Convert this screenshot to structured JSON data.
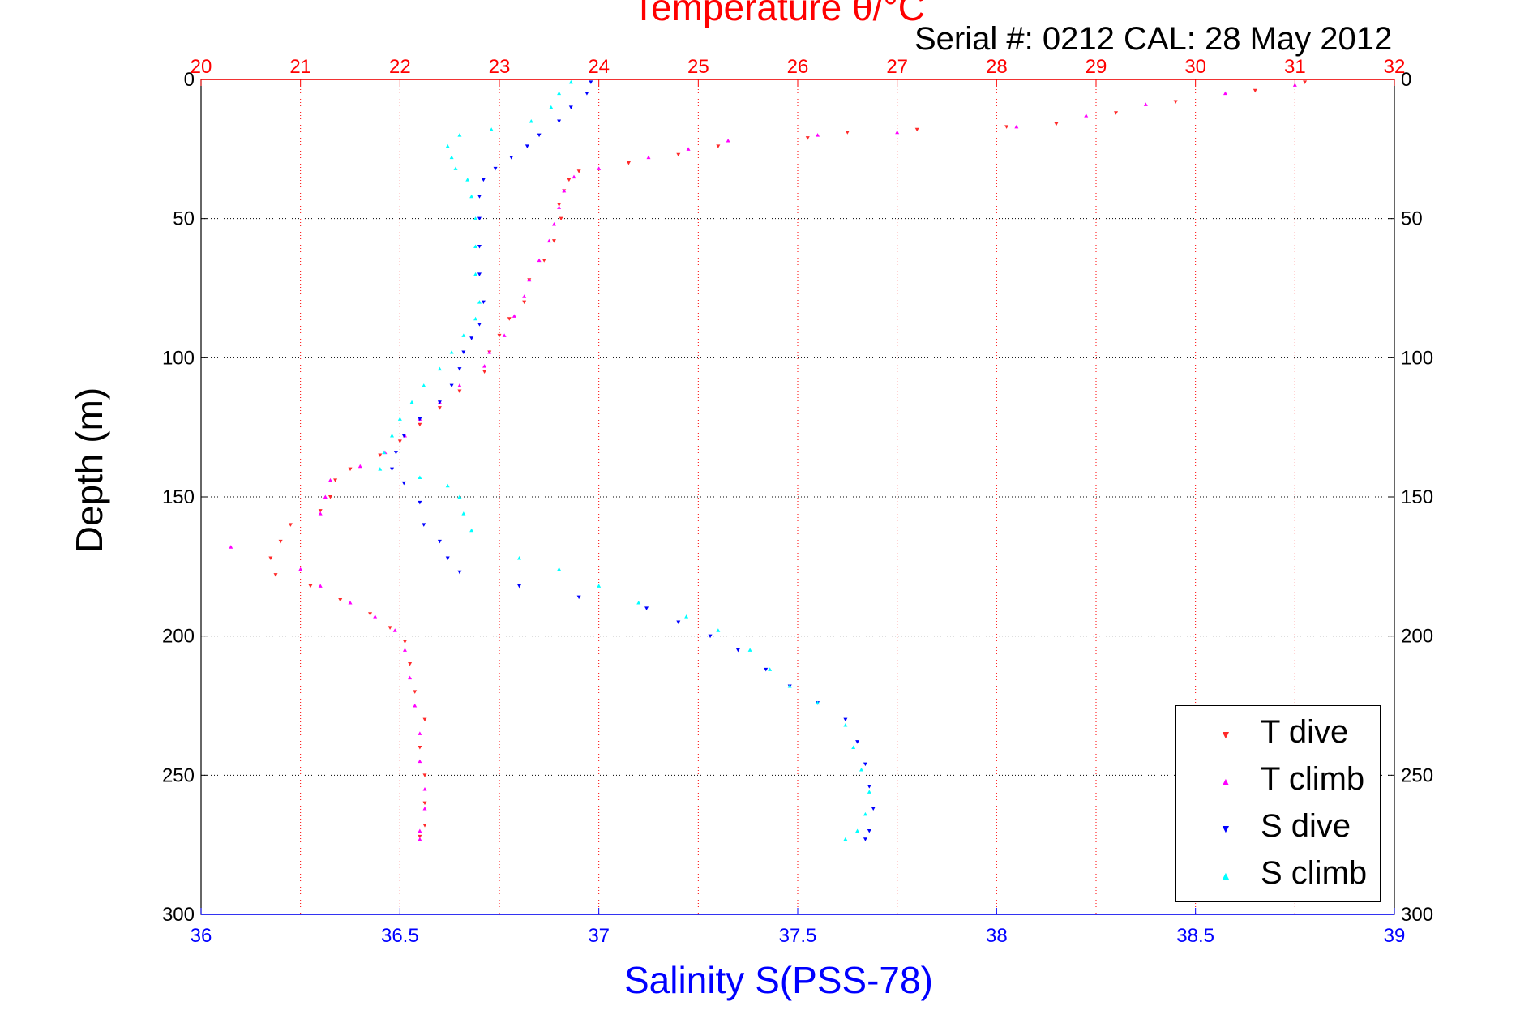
{
  "header": {
    "title": "Temperature θ/°C",
    "serial": "Serial #: 0212  CAL: 28 May 2012"
  },
  "colors": {
    "t_axis": "#ff0000",
    "s_axis": "#0000ff",
    "t_dive": "#ff2a2a",
    "t_climb": "#ff00ff",
    "s_dive": "#0000ff",
    "s_climb": "#00ffff"
  },
  "chart_data": {
    "type": "scatter",
    "title": "Temperature θ/°C",
    "xlabel": "Salinity S(PSS-78)",
    "ylabel": "Depth (m)",
    "grid": true,
    "legend_position": "bottom-right",
    "ylim": [
      300,
      0
    ],
    "y_ticks": [
      0,
      50,
      100,
      150,
      200,
      250,
      300
    ],
    "y_tick_labels": [
      "0",
      "50",
      "100",
      "150",
      "200",
      "250",
      "300"
    ],
    "x_bottom": {
      "label": "Salinity S(PSS-78)",
      "range": [
        36,
        39
      ],
      "ticks": [
        36,
        36.5,
        37,
        37.5,
        38,
        38.5,
        39
      ],
      "tick_labels": [
        "36",
        "36.5",
        "37",
        "37.5",
        "38",
        "38.5",
        "39"
      ]
    },
    "x_top": {
      "label": "Temperature θ/°C",
      "range": [
        20,
        32
      ],
      "ticks": [
        20,
        21,
        22,
        23,
        24,
        25,
        26,
        27,
        28,
        29,
        30,
        31,
        32
      ],
      "tick_labels": [
        "20",
        "21",
        "22",
        "23",
        "24",
        "25",
        "26",
        "27",
        "28",
        "29",
        "30",
        "31",
        "32"
      ]
    },
    "series": [
      {
        "name": "T dive",
        "axis": "top",
        "marker": "down-triangle",
        "color": "#ff2a2a",
        "points": [
          [
            31.1,
            1
          ],
          [
            30.6,
            4
          ],
          [
            29.8,
            8
          ],
          [
            29.2,
            12
          ],
          [
            28.6,
            16
          ],
          [
            28.1,
            17
          ],
          [
            27.2,
            18
          ],
          [
            26.5,
            19
          ],
          [
            26.1,
            21
          ],
          [
            25.2,
            24
          ],
          [
            24.8,
            27
          ],
          [
            24.3,
            30
          ],
          [
            23.8,
            33
          ],
          [
            23.7,
            36
          ],
          [
            23.65,
            40
          ],
          [
            23.6,
            45
          ],
          [
            23.62,
            50
          ],
          [
            23.55,
            58
          ],
          [
            23.45,
            65
          ],
          [
            23.3,
            72
          ],
          [
            23.25,
            80
          ],
          [
            23.1,
            86
          ],
          [
            23.0,
            92
          ],
          [
            22.9,
            98
          ],
          [
            22.85,
            105
          ],
          [
            22.6,
            112
          ],
          [
            22.4,
            118
          ],
          [
            22.2,
            124
          ],
          [
            22.0,
            130
          ],
          [
            21.8,
            135
          ],
          [
            21.5,
            140
          ],
          [
            21.35,
            144
          ],
          [
            21.3,
            150
          ],
          [
            21.2,
            155
          ],
          [
            20.9,
            160
          ],
          [
            20.8,
            166
          ],
          [
            20.7,
            172
          ],
          [
            20.75,
            178
          ],
          [
            21.1,
            182
          ],
          [
            21.4,
            187
          ],
          [
            21.7,
            192
          ],
          [
            21.9,
            197
          ],
          [
            22.05,
            202
          ],
          [
            22.1,
            210
          ],
          [
            22.15,
            220
          ],
          [
            22.25,
            230
          ],
          [
            22.2,
            240
          ],
          [
            22.25,
            250
          ],
          [
            22.25,
            260
          ],
          [
            22.25,
            268
          ],
          [
            22.2,
            272
          ]
        ]
      },
      {
        "name": "T climb",
        "axis": "top",
        "marker": "up-triangle",
        "color": "#ff00ff",
        "points": [
          [
            31.0,
            2
          ],
          [
            30.3,
            5
          ],
          [
            29.5,
            9
          ],
          [
            28.9,
            13
          ],
          [
            28.2,
            17
          ],
          [
            27.0,
            19
          ],
          [
            26.2,
            20
          ],
          [
            25.3,
            22
          ],
          [
            24.9,
            25
          ],
          [
            24.5,
            28
          ],
          [
            24.0,
            32
          ],
          [
            23.75,
            35
          ],
          [
            23.65,
            40
          ],
          [
            23.6,
            46
          ],
          [
            23.55,
            52
          ],
          [
            23.5,
            58
          ],
          [
            23.4,
            65
          ],
          [
            23.3,
            72
          ],
          [
            23.25,
            78
          ],
          [
            23.15,
            85
          ],
          [
            23.05,
            92
          ],
          [
            22.9,
            98
          ],
          [
            22.85,
            103
          ],
          [
            22.6,
            110
          ],
          [
            22.4,
            116
          ],
          [
            22.2,
            122
          ],
          [
            22.05,
            128
          ],
          [
            21.85,
            134
          ],
          [
            21.6,
            139
          ],
          [
            21.3,
            144
          ],
          [
            21.25,
            150
          ],
          [
            21.2,
            156
          ],
          [
            20.3,
            168
          ],
          [
            21.0,
            176
          ],
          [
            21.2,
            182
          ],
          [
            21.5,
            188
          ],
          [
            21.75,
            193
          ],
          [
            21.95,
            198
          ],
          [
            22.05,
            205
          ],
          [
            22.1,
            215
          ],
          [
            22.15,
            225
          ],
          [
            22.2,
            235
          ],
          [
            22.2,
            245
          ],
          [
            22.25,
            255
          ],
          [
            22.25,
            262
          ],
          [
            22.2,
            270
          ],
          [
            22.2,
            273
          ]
        ]
      },
      {
        "name": "S dive",
        "axis": "bottom",
        "marker": "down-triangle",
        "color": "#0000ff",
        "points": [
          [
            36.98,
            1
          ],
          [
            36.97,
            5
          ],
          [
            36.93,
            10
          ],
          [
            36.9,
            15
          ],
          [
            36.85,
            20
          ],
          [
            36.82,
            24
          ],
          [
            36.78,
            28
          ],
          [
            36.74,
            32
          ],
          [
            36.71,
            36
          ],
          [
            36.7,
            42
          ],
          [
            36.7,
            50
          ],
          [
            36.7,
            60
          ],
          [
            36.7,
            70
          ],
          [
            36.71,
            80
          ],
          [
            36.7,
            88
          ],
          [
            36.68,
            93
          ],
          [
            36.66,
            98
          ],
          [
            36.65,
            104
          ],
          [
            36.63,
            110
          ],
          [
            36.6,
            116
          ],
          [
            36.55,
            122
          ],
          [
            36.51,
            128
          ],
          [
            36.49,
            134
          ],
          [
            36.48,
            140
          ],
          [
            36.51,
            145
          ],
          [
            36.55,
            152
          ],
          [
            36.56,
            160
          ],
          [
            36.6,
            166
          ],
          [
            36.62,
            172
          ],
          [
            36.65,
            177
          ],
          [
            36.8,
            182
          ],
          [
            36.95,
            186
          ],
          [
            37.12,
            190
          ],
          [
            37.2,
            195
          ],
          [
            37.28,
            200
          ],
          [
            37.35,
            205
          ],
          [
            37.42,
            212
          ],
          [
            37.48,
            218
          ],
          [
            37.55,
            224
          ],
          [
            37.62,
            230
          ],
          [
            37.65,
            238
          ],
          [
            37.67,
            246
          ],
          [
            37.68,
            254
          ],
          [
            37.69,
            262
          ],
          [
            37.68,
            270
          ],
          [
            37.67,
            273
          ]
        ]
      },
      {
        "name": "S climb",
        "axis": "bottom",
        "marker": "up-triangle",
        "color": "#00ffff",
        "points": [
          [
            36.93,
            1
          ],
          [
            36.9,
            5
          ],
          [
            36.88,
            10
          ],
          [
            36.83,
            15
          ],
          [
            36.73,
            18
          ],
          [
            36.65,
            20
          ],
          [
            36.62,
            24
          ],
          [
            36.63,
            28
          ],
          [
            36.64,
            32
          ],
          [
            36.67,
            36
          ],
          [
            36.68,
            42
          ],
          [
            36.69,
            50
          ],
          [
            36.69,
            60
          ],
          [
            36.69,
            70
          ],
          [
            36.7,
            80
          ],
          [
            36.69,
            86
          ],
          [
            36.66,
            92
          ],
          [
            36.63,
            98
          ],
          [
            36.6,
            104
          ],
          [
            36.56,
            110
          ],
          [
            36.53,
            116
          ],
          [
            36.5,
            122
          ],
          [
            36.48,
            128
          ],
          [
            36.46,
            134
          ],
          [
            36.45,
            140
          ],
          [
            36.55,
            143
          ],
          [
            36.62,
            146
          ],
          [
            36.65,
            150
          ],
          [
            36.66,
            156
          ],
          [
            36.68,
            162
          ],
          [
            36.8,
            172
          ],
          [
            36.9,
            176
          ],
          [
            37.0,
            182
          ],
          [
            37.1,
            188
          ],
          [
            37.22,
            193
          ],
          [
            37.3,
            198
          ],
          [
            37.38,
            205
          ],
          [
            37.43,
            212
          ],
          [
            37.48,
            218
          ],
          [
            37.55,
            224
          ],
          [
            37.62,
            232
          ],
          [
            37.64,
            240
          ],
          [
            37.66,
            248
          ],
          [
            37.68,
            256
          ],
          [
            37.67,
            264
          ],
          [
            37.65,
            270
          ],
          [
            37.62,
            273
          ]
        ]
      }
    ]
  }
}
